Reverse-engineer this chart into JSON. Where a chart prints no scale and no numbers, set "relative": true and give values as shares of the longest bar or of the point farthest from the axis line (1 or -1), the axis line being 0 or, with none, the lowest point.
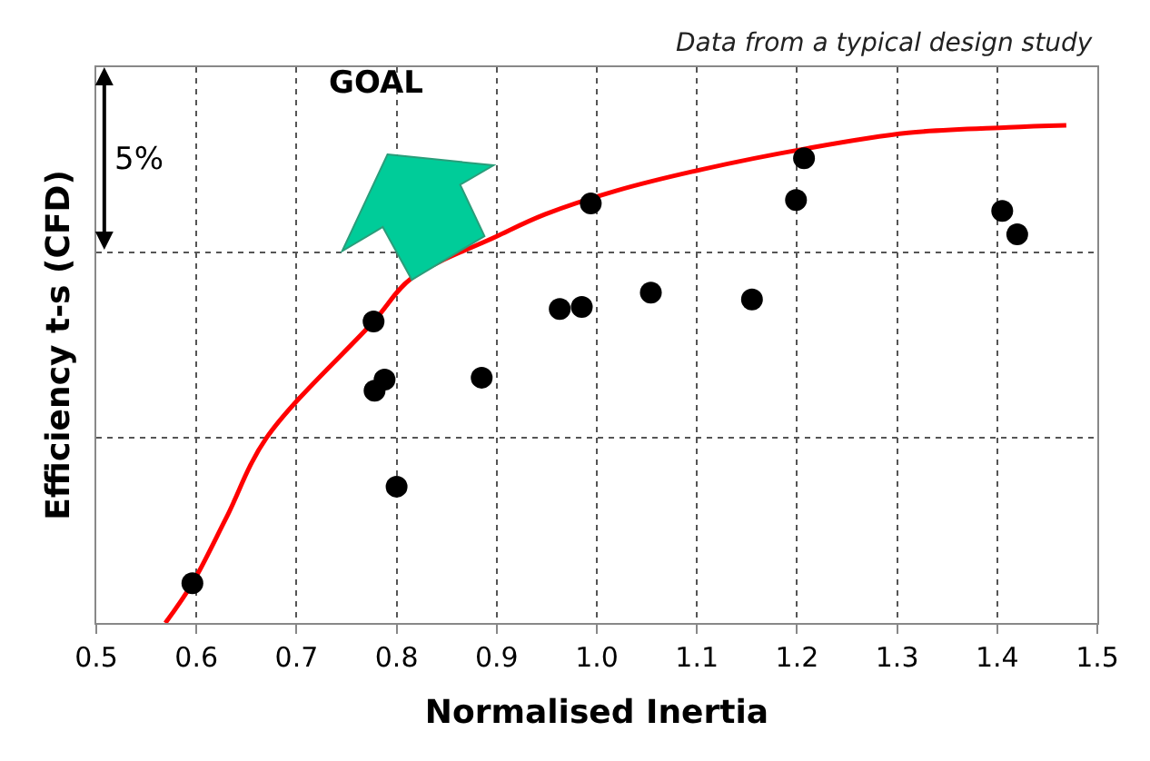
{
  "chart_data": {
    "type": "scatter",
    "relative": true,
    "xlabel": "Normalised Inertia",
    "ylabel": "Efficiency t-s (CFD)",
    "annotations": [
      "Data from a typical design study",
      "5%",
      "GOAL"
    ],
    "xlim": [
      0.5,
      1.5
    ],
    "xticks": [
      {
        "value": 0.5,
        "label": "0.5"
      },
      {
        "value": 0.6,
        "label": "0.6"
      },
      {
        "value": 0.7,
        "label": "0.7"
      },
      {
        "value": 0.8,
        "label": "0.8"
      },
      {
        "value": 0.9,
        "label": "0.9"
      },
      {
        "value": 1.0,
        "label": "1.0"
      },
      {
        "value": 1.1,
        "label": "1.1"
      },
      {
        "value": 1.2,
        "label": "1.2"
      },
      {
        "value": 1.3,
        "label": "1.3"
      },
      {
        "value": 1.4,
        "label": "1.4"
      },
      {
        "value": 1.5,
        "label": "1.5"
      }
    ],
    "grid": true,
    "series": [
      {
        "type": "line",
        "color": "#ff0000",
        "marker": "none",
        "x": [
          0.569,
          0.596,
          0.63,
          0.67,
          0.777,
          0.815,
          0.9,
          0.948,
          1.02,
          1.106,
          1.208,
          1.311,
          1.411,
          1.469
        ],
        "values": [
          0,
          0.08,
          0.212,
          0.372,
          0.606,
          0.693,
          0.777,
          0.821,
          0.869,
          0.912,
          0.953,
          0.985,
          0.996,
          1.0
        ]
      },
      {
        "color": "#000000",
        "marker": "circle",
        "x": [
          0.596,
          0.777,
          0.788,
          0.778,
          0.8,
          0.885,
          0.963,
          0.985,
          0.994,
          1.054,
          1.155,
          1.199,
          1.207,
          1.405,
          1.42
        ],
        "values": [
          0.08,
          0.606,
          0.489,
          0.467,
          0.274,
          0.493,
          0.631,
          0.635,
          0.843,
          0.664,
          0.65,
          0.85,
          0.934,
          0.828,
          0.781
        ]
      }
    ]
  }
}
